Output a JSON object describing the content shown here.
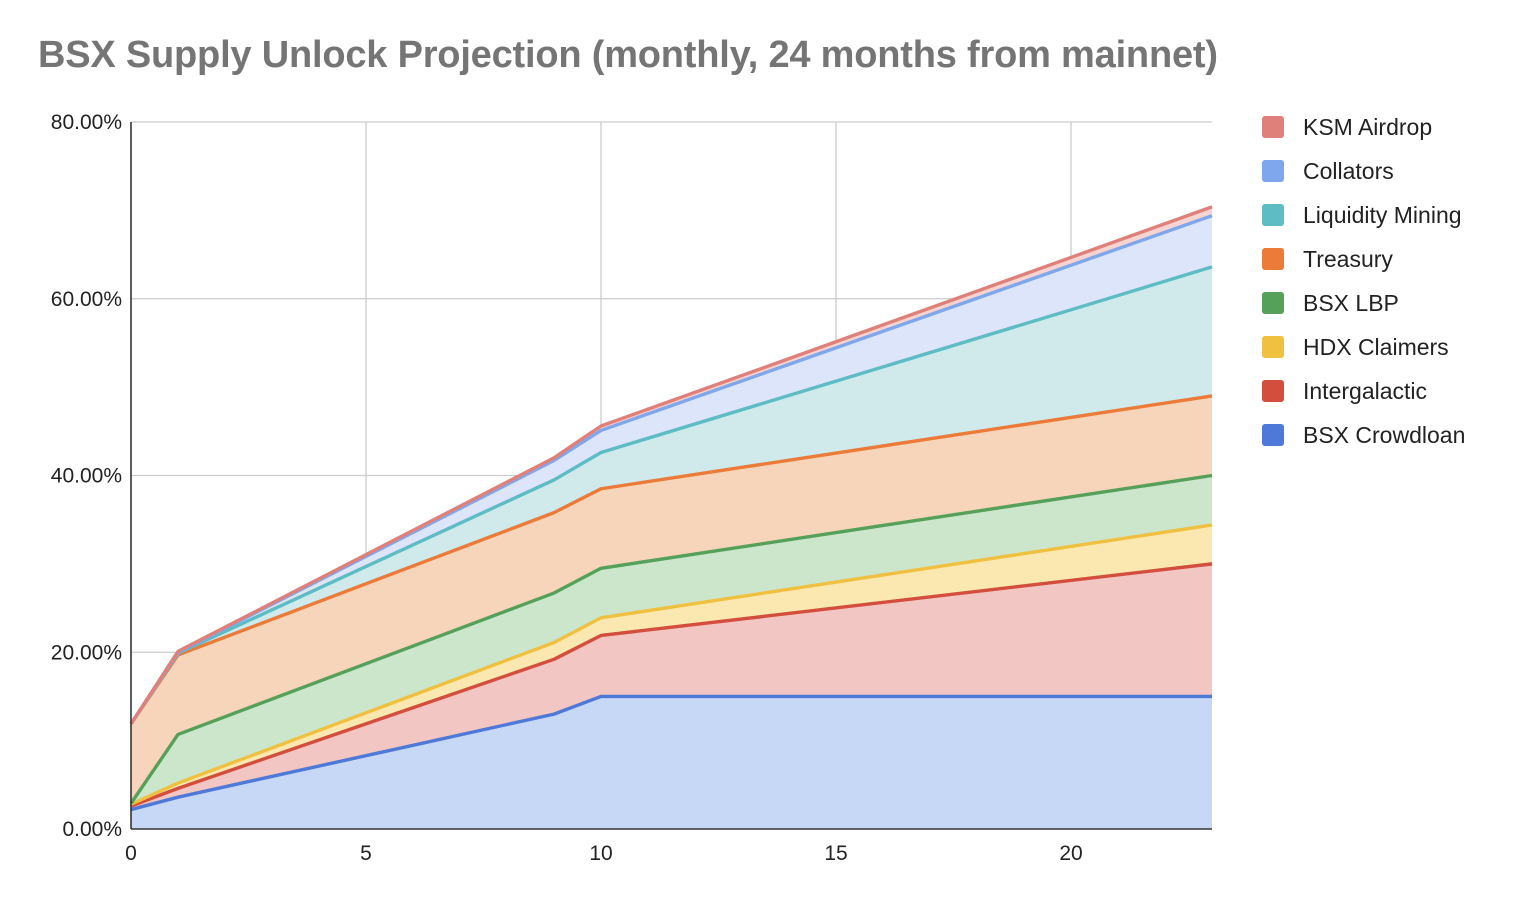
{
  "chart_data": {
    "type": "area",
    "stacked": true,
    "title": "BSX Supply Unlock Projection (monthly, 24 months from mainnet)",
    "xlabel": "",
    "ylabel": "",
    "xlim": [
      0,
      23
    ],
    "ylim": [
      0,
      80
    ],
    "x_ticks": [
      0,
      5,
      10,
      15,
      20
    ],
    "x_tick_labels": [
      "0",
      "5",
      "10",
      "15",
      "20"
    ],
    "y_ticks": [
      0,
      20,
      40,
      60,
      80
    ],
    "y_tick_labels": [
      "0.00%",
      "20.00%",
      "40.00%",
      "60.00%",
      "80.00%"
    ],
    "grid": true,
    "legend_position": "right",
    "x": [
      0,
      1,
      9,
      10,
      23
    ],
    "series": [
      {
        "name": "BSX Crowdloan",
        "color": "#4e79d9",
        "fill": "#c6d8f5",
        "values": [
          2.2,
          3.6,
          13.0,
          15.0,
          15.0
        ]
      },
      {
        "name": "Intergalactic",
        "color": "#d44e3e",
        "fill": "#f2c6c3",
        "values": [
          0.4,
          1.0,
          6.2,
          6.9,
          15.0
        ]
      },
      {
        "name": "HDX Claimers",
        "color": "#f0c040",
        "fill": "#fbe7b0",
        "values": [
          0.2,
          0.6,
          1.9,
          2.0,
          4.4
        ]
      },
      {
        "name": "BSX LBP",
        "color": "#56a15a",
        "fill": "#cce6cc",
        "values": [
          0.1,
          5.5,
          5.6,
          5.6,
          5.6
        ]
      },
      {
        "name": "Treasury",
        "color": "#ec7b3a",
        "fill": "#f7d5bb",
        "values": [
          9.0,
          9.0,
          9.1,
          9.0,
          9.0
        ]
      },
      {
        "name": "Liquidity Mining",
        "color": "#5dbcc4",
        "fill": "#d0eaec",
        "values": [
          0.0,
          0.2,
          3.7,
          4.1,
          14.6
        ]
      },
      {
        "name": "Collators",
        "color": "#7ea7ee",
        "fill": "#dde5fb",
        "values": [
          0.0,
          0.1,
          2.2,
          2.5,
          5.8
        ]
      },
      {
        "name": "KSM Airdrop",
        "color": "#e0807a",
        "fill": "#f6d4d1",
        "values": [
          0.0,
          0.1,
          0.3,
          0.5,
          1.0
        ]
      }
    ]
  }
}
